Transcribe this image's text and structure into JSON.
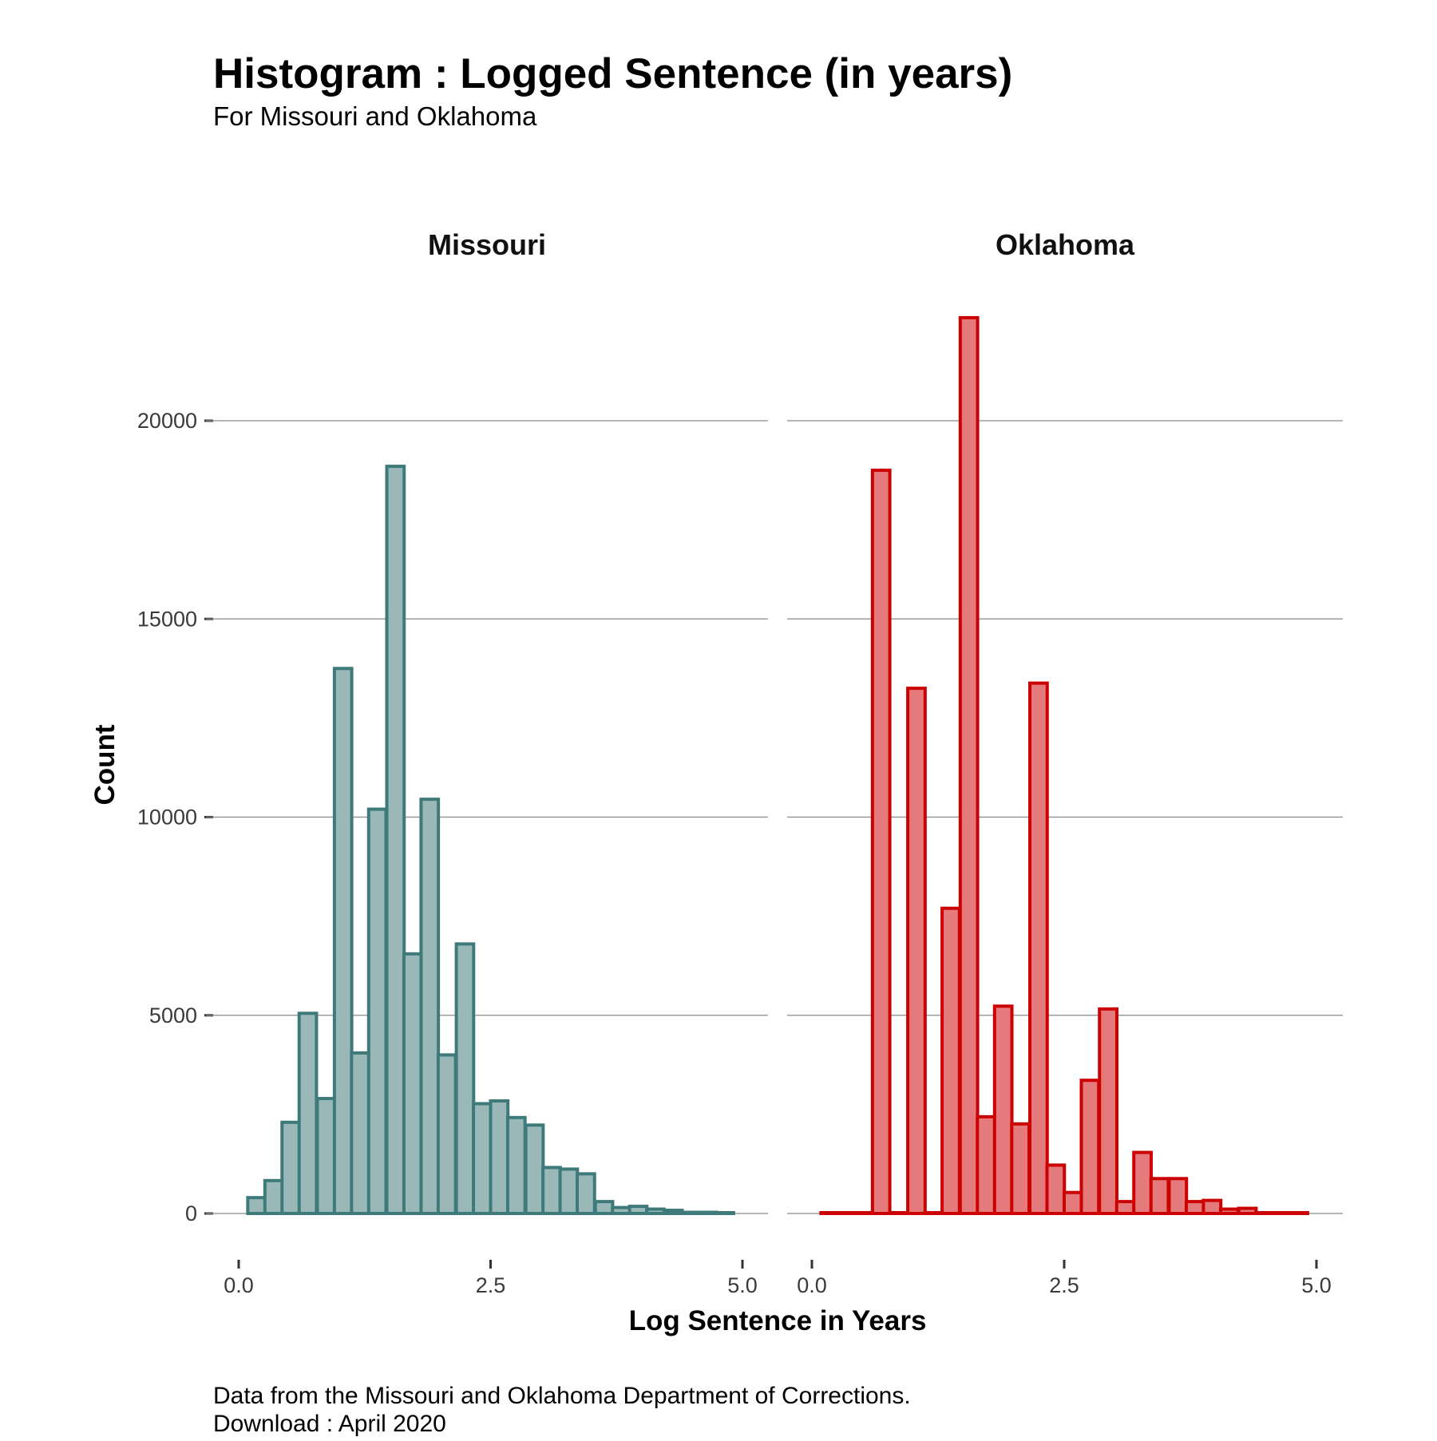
{
  "title": "Histogram : Logged Sentence (in years)",
  "subtitle": "For Missouri and Oklahoma",
  "caption": [
    "Data from the Missouri and Oklahoma Department of Corrections.",
    "Download : April 2020"
  ],
  "chart_data": {
    "type": "bar",
    "subtype": "histogram-facets",
    "xlabel": "Log Sentence in Years",
    "ylabel": "Count",
    "xlim": [
      0,
      5
    ],
    "ylim": [
      0,
      22500
    ],
    "xticks": [
      "0.0",
      "2.5",
      "5.0"
    ],
    "yticks": [
      "0",
      "5000",
      "10000",
      "15000",
      "20000"
    ],
    "grid": true,
    "bin_width": 0.172,
    "panels": [
      {
        "name": "Missouri",
        "fill": "#9ab8b8",
        "stroke": "#3f7a7a",
        "bin_starts": [
          0.09,
          0.26,
          0.43,
          0.6,
          0.78,
          0.95,
          1.12,
          1.29,
          1.47,
          1.64,
          1.81,
          1.98,
          2.16,
          2.33,
          2.5,
          2.67,
          2.85,
          3.02,
          3.19,
          3.36,
          3.54,
          3.71,
          3.88,
          4.05,
          4.23,
          4.4,
          4.57,
          4.74
        ],
        "values": [
          400,
          830,
          2300,
          5050,
          2900,
          13750,
          4050,
          10200,
          18850,
          6550,
          10450,
          4000,
          6800,
          2770,
          2840,
          2420,
          2230,
          1160,
          1120,
          1000,
          300,
          150,
          180,
          110,
          80,
          30,
          30,
          20
        ]
      },
      {
        "name": "Oklahoma",
        "fill": "#e57a7d",
        "stroke": "#cc0000",
        "bin_starts": [
          0.09,
          0.26,
          0.43,
          0.6,
          0.78,
          0.95,
          1.12,
          1.29,
          1.47,
          1.64,
          1.81,
          1.98,
          2.16,
          2.33,
          2.5,
          2.67,
          2.85,
          3.02,
          3.19,
          3.36,
          3.54,
          3.71,
          3.88,
          4.05,
          4.23,
          4.4,
          4.57,
          4.74
        ],
        "values": [
          0,
          0,
          0,
          18750,
          0,
          13250,
          0,
          7700,
          22600,
          2440,
          5230,
          2260,
          13380,
          1220,
          530,
          3360,
          5160,
          300,
          1540,
          880,
          880,
          300,
          330,
          110,
          130,
          20,
          20,
          20
        ]
      }
    ]
  }
}
